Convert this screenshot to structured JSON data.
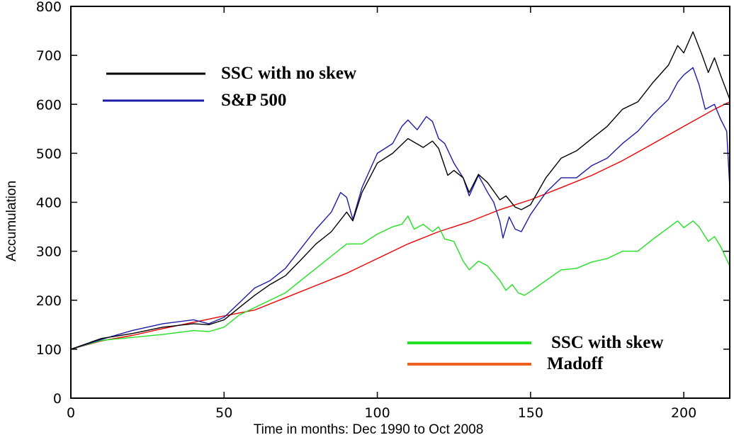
{
  "chart_data": {
    "type": "line",
    "xlabel": "Time in months: Dec 1990 to Oct 2008",
    "ylabel": "Accumulation",
    "xlim": [
      0,
      215
    ],
    "ylim": [
      0,
      800
    ],
    "x_ticks": [
      "0",
      "50",
      "100",
      "150",
      "200"
    ],
    "y_ticks": [
      "0",
      "100",
      "200",
      "300",
      "400",
      "500",
      "600",
      "700",
      "800"
    ],
    "grid": false,
    "series": [
      {
        "name": "SSC with no skew",
        "color": "#000000",
        "points": [
          [
            0,
            100
          ],
          [
            10,
            122
          ],
          [
            20,
            132
          ],
          [
            30,
            145
          ],
          [
            40,
            152
          ],
          [
            45,
            150
          ],
          [
            50,
            160
          ],
          [
            55,
            185
          ],
          [
            60,
            210
          ],
          [
            65,
            232
          ],
          [
            70,
            250
          ],
          [
            75,
            282
          ],
          [
            80,
            315
          ],
          [
            85,
            340
          ],
          [
            90,
            380
          ],
          [
            92,
            362
          ],
          [
            95,
            420
          ],
          [
            100,
            480
          ],
          [
            105,
            500
          ],
          [
            110,
            530
          ],
          [
            115,
            512
          ],
          [
            118,
            525
          ],
          [
            120,
            510
          ],
          [
            123,
            455
          ],
          [
            125,
            465
          ],
          [
            128,
            450
          ],
          [
            130,
            420
          ],
          [
            133,
            457
          ],
          [
            136,
            440
          ],
          [
            140,
            405
          ],
          [
            142,
            413
          ],
          [
            145,
            390
          ],
          [
            147,
            385
          ],
          [
            150,
            395
          ],
          [
            155,
            450
          ],
          [
            160,
            490
          ],
          [
            165,
            505
          ],
          [
            170,
            530
          ],
          [
            175,
            555
          ],
          [
            180,
            590
          ],
          [
            185,
            605
          ],
          [
            190,
            645
          ],
          [
            195,
            680
          ],
          [
            198,
            720
          ],
          [
            200,
            705
          ],
          [
            203,
            748
          ],
          [
            206,
            700
          ],
          [
            208,
            665
          ],
          [
            210,
            695
          ],
          [
            212,
            660
          ],
          [
            215,
            610
          ]
        ]
      },
      {
        "name": "S&P 500",
        "color": "#1c1ca8",
        "points": [
          [
            0,
            100
          ],
          [
            10,
            120
          ],
          [
            20,
            138
          ],
          [
            30,
            152
          ],
          [
            40,
            160
          ],
          [
            45,
            152
          ],
          [
            50,
            165
          ],
          [
            55,
            195
          ],
          [
            60,
            225
          ],
          [
            65,
            240
          ],
          [
            70,
            265
          ],
          [
            75,
            305
          ],
          [
            80,
            345
          ],
          [
            85,
            380
          ],
          [
            88,
            420
          ],
          [
            90,
            410
          ],
          [
            92,
            365
          ],
          [
            95,
            430
          ],
          [
            100,
            500
          ],
          [
            105,
            520
          ],
          [
            108,
            555
          ],
          [
            110,
            568
          ],
          [
            113,
            548
          ],
          [
            116,
            575
          ],
          [
            118,
            565
          ],
          [
            120,
            530
          ],
          [
            122,
            520
          ],
          [
            125,
            480
          ],
          [
            128,
            450
          ],
          [
            130,
            413
          ],
          [
            133,
            455
          ],
          [
            136,
            420
          ],
          [
            138,
            400
          ],
          [
            140,
            360
          ],
          [
            141,
            327
          ],
          [
            143,
            370
          ],
          [
            145,
            345
          ],
          [
            147,
            340
          ],
          [
            150,
            375
          ],
          [
            155,
            420
          ],
          [
            160,
            450
          ],
          [
            165,
            450
          ],
          [
            170,
            475
          ],
          [
            175,
            490
          ],
          [
            180,
            520
          ],
          [
            185,
            545
          ],
          [
            190,
            580
          ],
          [
            195,
            610
          ],
          [
            198,
            645
          ],
          [
            200,
            660
          ],
          [
            203,
            675
          ],
          [
            205,
            640
          ],
          [
            207,
            590
          ],
          [
            210,
            600
          ],
          [
            212,
            570
          ],
          [
            214,
            545
          ],
          [
            215,
            430
          ]
        ]
      },
      {
        "name": "SSC with skew",
        "color": "#22e022",
        "points": [
          [
            0,
            100
          ],
          [
            10,
            118
          ],
          [
            20,
            124
          ],
          [
            30,
            130
          ],
          [
            40,
            138
          ],
          [
            45,
            136
          ],
          [
            50,
            145
          ],
          [
            55,
            170
          ],
          [
            60,
            185
          ],
          [
            65,
            200
          ],
          [
            70,
            215
          ],
          [
            75,
            240
          ],
          [
            80,
            265
          ],
          [
            85,
            290
          ],
          [
            90,
            315
          ],
          [
            95,
            315
          ],
          [
            100,
            335
          ],
          [
            105,
            350
          ],
          [
            108,
            355
          ],
          [
            110,
            372
          ],
          [
            112,
            345
          ],
          [
            115,
            355
          ],
          [
            118,
            340
          ],
          [
            120,
            350
          ],
          [
            122,
            325
          ],
          [
            125,
            320
          ],
          [
            128,
            280
          ],
          [
            130,
            262
          ],
          [
            133,
            280
          ],
          [
            136,
            270
          ],
          [
            140,
            240
          ],
          [
            142,
            220
          ],
          [
            144,
            232
          ],
          [
            146,
            215
          ],
          [
            148,
            210
          ],
          [
            150,
            218
          ],
          [
            155,
            240
          ],
          [
            160,
            262
          ],
          [
            165,
            265
          ],
          [
            170,
            278
          ],
          [
            175,
            285
          ],
          [
            180,
            300
          ],
          [
            185,
            300
          ],
          [
            190,
            325
          ],
          [
            195,
            348
          ],
          [
            198,
            362
          ],
          [
            200,
            348
          ],
          [
            203,
            362
          ],
          [
            205,
            350
          ],
          [
            208,
            320
          ],
          [
            210,
            330
          ],
          [
            212,
            310
          ],
          [
            215,
            270
          ]
        ]
      },
      {
        "name": "Madoff",
        "color": "#ee0000",
        "points": [
          [
            0,
            100
          ],
          [
            10,
            117
          ],
          [
            20,
            128
          ],
          [
            30,
            142
          ],
          [
            40,
            155
          ],
          [
            50,
            168
          ],
          [
            60,
            180
          ],
          [
            70,
            205
          ],
          [
            80,
            230
          ],
          [
            90,
            255
          ],
          [
            100,
            285
          ],
          [
            110,
            315
          ],
          [
            120,
            340
          ],
          [
            130,
            360
          ],
          [
            140,
            385
          ],
          [
            150,
            405
          ],
          [
            160,
            430
          ],
          [
            170,
            455
          ],
          [
            180,
            485
          ],
          [
            190,
            520
          ],
          [
            200,
            555
          ],
          [
            210,
            590
          ],
          [
            215,
            605
          ]
        ]
      }
    ],
    "legend_top": {
      "placement": "top-left",
      "entries": [
        {
          "label": "SSC with no skew",
          "color": "#000000"
        },
        {
          "label": "S&P 500",
          "color": "#1c1ca8"
        }
      ]
    },
    "legend_bottom": {
      "placement": "bottom-right",
      "entries": [
        {
          "label": "SSC with skew",
          "color": "#22e022"
        },
        {
          "label": "Madoff",
          "color": "#ee6020"
        }
      ]
    }
  }
}
